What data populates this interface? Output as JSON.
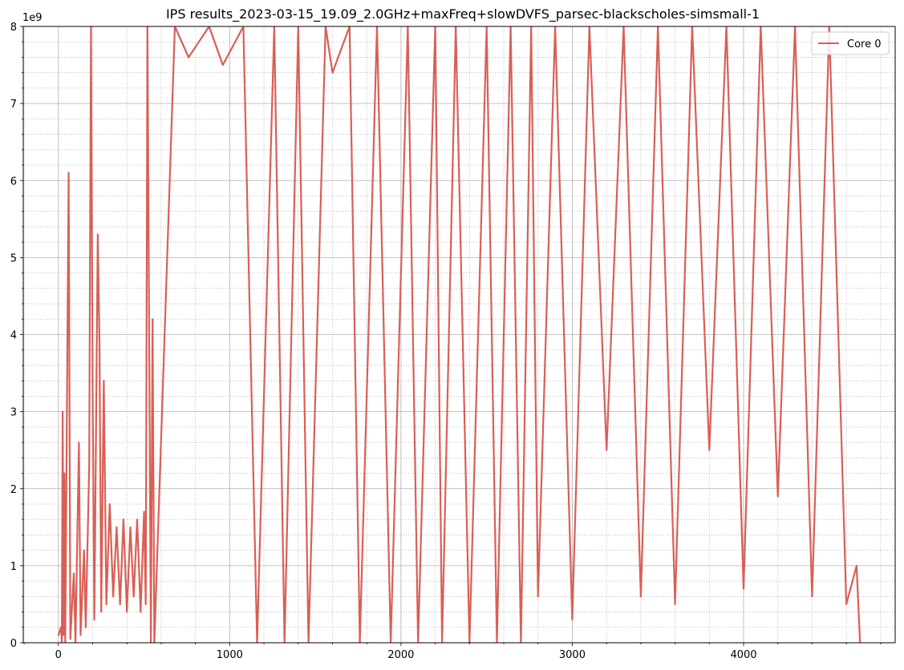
{
  "chart_data": {
    "type": "line",
    "title": "IPS results_2023-03-15_19.09_2.0GHz+maxFreq+slowDVFS_parsec-blackscholes-simsmall-1",
    "xlabel": "",
    "ylabel": "",
    "y_offset_label": "1e9",
    "xlim": [
      -205,
      4885
    ],
    "ylim": [
      0,
      8
    ],
    "x_ticks": [
      0,
      1000,
      2000,
      3000,
      4000
    ],
    "y_ticks": [
      0,
      1,
      2,
      3,
      4,
      5,
      6,
      7,
      8
    ],
    "grid": true,
    "minor_grid": true,
    "legend_position": "top-right",
    "color": "#d95f55",
    "series": [
      {
        "name": "Core 0",
        "description_points": [
          [
            0,
            0.1
          ],
          [
            15,
            0.2
          ],
          [
            20,
            0.0
          ],
          [
            25,
            3.0
          ],
          [
            30,
            0.1
          ],
          [
            35,
            2.2
          ],
          [
            40,
            0.0
          ],
          [
            60,
            6.1
          ],
          [
            70,
            0.05
          ],
          [
            90,
            0.9
          ],
          [
            100,
            0.0
          ],
          [
            120,
            2.6
          ],
          [
            130,
            0.1
          ],
          [
            150,
            1.2
          ],
          [
            160,
            0.2
          ],
          [
            180,
            2.3
          ],
          [
            190,
            8.0
          ],
          [
            200,
            3.3
          ],
          [
            210,
            0.3
          ],
          [
            230,
            5.3
          ],
          [
            240,
            3.9
          ],
          [
            250,
            0.4
          ],
          [
            265,
            3.4
          ],
          [
            280,
            0.5
          ],
          [
            300,
            1.8
          ],
          [
            320,
            0.6
          ],
          [
            340,
            1.5
          ],
          [
            360,
            0.5
          ],
          [
            380,
            1.6
          ],
          [
            400,
            0.4
          ],
          [
            420,
            1.5
          ],
          [
            440,
            0.6
          ],
          [
            460,
            1.6
          ],
          [
            480,
            0.4
          ],
          [
            500,
            1.7
          ],
          [
            510,
            0.5
          ],
          [
            520,
            8.0
          ],
          [
            540,
            0.0
          ],
          [
            550,
            4.2
          ],
          [
            560,
            0.0
          ],
          [
            680,
            8.0
          ],
          [
            760,
            7.6
          ],
          [
            880,
            8.0
          ],
          [
            960,
            7.5
          ],
          [
            1080,
            8.0
          ],
          [
            1160,
            0.0
          ],
          [
            1260,
            8.0
          ],
          [
            1320,
            0.0
          ],
          [
            1400,
            8.0
          ],
          [
            1460,
            0.0
          ],
          [
            1560,
            8.0
          ],
          [
            1600,
            7.4
          ],
          [
            1700,
            8.0
          ],
          [
            1760,
            0.0
          ],
          [
            1860,
            8.0
          ],
          [
            1940,
            0.0
          ],
          [
            2040,
            8.0
          ],
          [
            2100,
            0.0
          ],
          [
            2200,
            8.0
          ],
          [
            2240,
            0.0
          ],
          [
            2320,
            8.0
          ],
          [
            2400,
            0.0
          ],
          [
            2500,
            8.0
          ],
          [
            2560,
            0.0
          ],
          [
            2640,
            8.0
          ],
          [
            2700,
            0.0
          ],
          [
            2760,
            8.0
          ],
          [
            2800,
            0.6
          ],
          [
            2900,
            8.0
          ],
          [
            3000,
            0.3
          ],
          [
            3100,
            8.0
          ],
          [
            3200,
            2.5
          ],
          [
            3300,
            8.0
          ],
          [
            3400,
            0.6
          ],
          [
            3500,
            8.0
          ],
          [
            3600,
            0.5
          ],
          [
            3700,
            8.0
          ],
          [
            3800,
            2.5
          ],
          [
            3900,
            8.0
          ],
          [
            4000,
            0.7
          ],
          [
            4100,
            8.0
          ],
          [
            4200,
            1.9
          ],
          [
            4300,
            8.0
          ],
          [
            4400,
            0.6
          ],
          [
            4500,
            8.0
          ],
          [
            4600,
            0.5
          ],
          [
            4660,
            1.0
          ],
          [
            4680,
            0.0
          ]
        ]
      }
    ]
  }
}
